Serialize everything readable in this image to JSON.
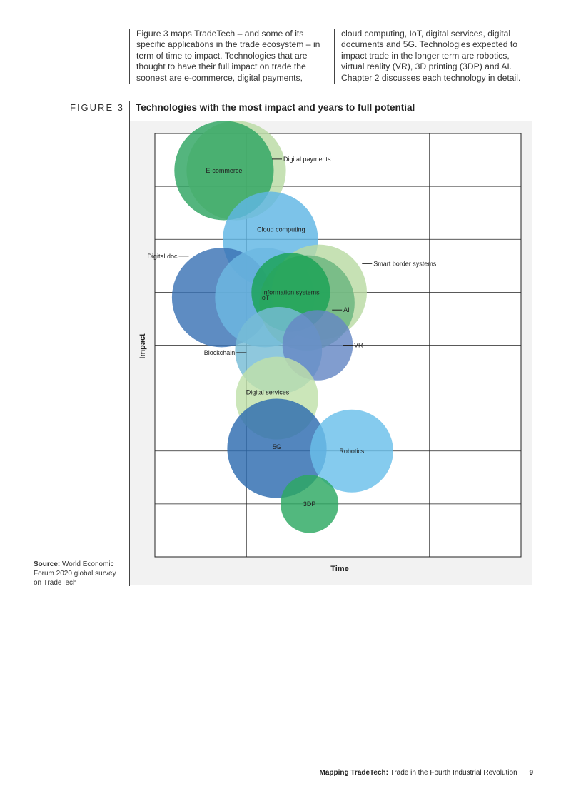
{
  "intro": {
    "col1_lines": [
      "Figure 3 maps TradeTech – and some of its",
      "specific applications in the trade ecosystem – in",
      "term of time to impact. Technologies that are",
      "thought to have their full impact on trade the",
      "soonest are e-commerce, digital payments,"
    ],
    "col2_lines": [
      "cloud computing, IoT, digital services, digital",
      "documents and 5G. Technologies expected to",
      "impact trade in the longer term are robotics,",
      "virtual reality (VR), 3D printing (3DP) and AI.",
      "Chapter 2 discusses each technology in detail."
    ]
  },
  "figure": {
    "label": "FIGURE 3",
    "title": "Technologies with the most impact and years to full potential"
  },
  "chart_data": {
    "type": "bubble",
    "title": "Technologies with the most impact and years to full potential",
    "xlabel": "Time",
    "ylabel": "Impact",
    "xlim": [
      0,
      4.5
    ],
    "ylim": [
      0,
      8
    ],
    "grid": true,
    "series": [
      {
        "name": "Digital payments",
        "x": 1.0,
        "y": 7.3,
        "size": 1.2,
        "color": "#b9dba3"
      },
      {
        "name": "E-commerce",
        "x": 0.85,
        "y": 7.3,
        "size": 1.2,
        "color": "#2ea562"
      },
      {
        "name": "Cloud computing",
        "x": 1.42,
        "y": 6.0,
        "size": 1.15,
        "color": "#5fb6e4"
      },
      {
        "name": "Digital doc",
        "x": 0.82,
        "y": 4.9,
        "size": 1.2,
        "color": "#3b73b4"
      },
      {
        "name": "IoT",
        "x": 1.35,
        "y": 4.9,
        "size": 1.2,
        "color": "#6cb8e2"
      },
      {
        "name": "Smart border systems",
        "x": 2.02,
        "y": 5.0,
        "size": 1.15,
        "color": "#b9dba3"
      },
      {
        "name": "AI",
        "x": 1.87,
        "y": 4.8,
        "size": 1.15,
        "color": "#69b47e"
      },
      {
        "name": "Information systems",
        "x": 1.67,
        "y": 5.0,
        "size": 0.95,
        "color": "#1aa256"
      },
      {
        "name": "Blockchain",
        "x": 1.52,
        "y": 3.9,
        "size": 1.05,
        "color": "#76bcd6"
      },
      {
        "name": "VR",
        "x": 2.0,
        "y": 4.0,
        "size": 0.85,
        "color": "#6588c4"
      },
      {
        "name": "Digital services",
        "x": 1.5,
        "y": 3.0,
        "size": 1.0,
        "color": "#bfe0aa"
      },
      {
        "name": "5G",
        "x": 1.5,
        "y": 2.05,
        "size": 1.2,
        "color": "#2d6bb0"
      },
      {
        "name": "Robotics",
        "x": 2.42,
        "y": 2.0,
        "size": 1.0,
        "color": "#6ac0ea"
      },
      {
        "name": "3DP",
        "x": 1.9,
        "y": 1.0,
        "size": 0.7,
        "color": "#2ca862"
      }
    ]
  },
  "source": {
    "label": "Source:",
    "text": "World Economic Forum 2020 global survey on TradeTech"
  },
  "footer": {
    "bold": "Mapping TradeTech:",
    "rest": "Trade in the Fourth Industrial Revolution",
    "page": "9"
  }
}
